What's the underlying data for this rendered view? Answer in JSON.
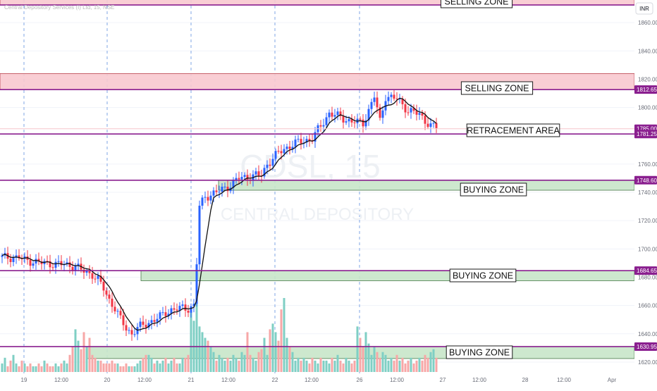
{
  "header": {
    "symbol_line": "Central Depository Services (I) Ltd, 15, NSE"
  },
  "currency_button": {
    "label": "INR"
  },
  "watermark": {
    "symbol": "CDSL, 15",
    "name": "CENTRAL DEPOSITORY"
  },
  "colors": {
    "up": "#2962ff",
    "down": "#f23645",
    "vol_up": "#7fcfc4",
    "vol_down": "#f7a7a7",
    "level_line": "#8a1f8f",
    "sell_zone_fill": "#f8c9cf",
    "buy_zone_fill": "#c8e6c9",
    "badge": "#8a1f8f",
    "ma": "#111111"
  },
  "chart_data": {
    "type": "candlestick",
    "interval": "15m",
    "ylim": [
      1612,
      1876
    ],
    "y_ticks": [
      1620,
      1640,
      1660,
      1680,
      1700,
      1720,
      1740,
      1760,
      1780,
      1800,
      1820,
      1840,
      1860
    ],
    "x_ticks": [
      "19",
      "12:00",
      "20",
      "12:00",
      "21",
      "12:00",
      "22",
      "12:00",
      "26",
      "12:00",
      "27",
      "12:00",
      "28",
      "12:00",
      "Apr"
    ],
    "session_labels": [
      "19",
      "20",
      "21",
      "22",
      "26"
    ],
    "price_levels": [
      {
        "value": 1812.65,
        "label": "1812.65"
      },
      {
        "value": 1785.0,
        "label": "1785.00"
      },
      {
        "value": 1781.25,
        "label": "1781.25"
      },
      {
        "value": 1748.6,
        "label": "1748.60"
      },
      {
        "value": 1684.65,
        "label": "1684.65"
      },
      {
        "value": 1630.95,
        "label": "1630.95"
      }
    ],
    "zones": [
      {
        "label": "SELLING ZONE",
        "type": "sell",
        "y_low": 1872.5,
        "y_high": 1880
      },
      {
        "label": "SELLING ZONE",
        "type": "sell",
        "y_low": 1812.65,
        "y_high": 1824
      },
      {
        "label": "BUYING ZONE",
        "type": "buy",
        "y_low": 1741.5,
        "y_high": 1748.6
      },
      {
        "label": "BUYING ZONE",
        "type": "buy",
        "y_low": 1677.5,
        "y_high": 1684.65
      },
      {
        "label": "BUYING ZONE",
        "type": "buy",
        "y_low": 1622.5,
        "y_high": 1630.95
      }
    ],
    "annotations": [
      {
        "label": "RETRACEMENT AREA",
        "y": 1787
      }
    ],
    "path_points": [
      [
        0,
        1694
      ],
      [
        6,
        1694
      ],
      [
        8,
        1692
      ],
      [
        12,
        1691
      ],
      [
        14,
        1690
      ],
      [
        22,
        1689
      ],
      [
        26,
        1688
      ],
      [
        28,
        1685
      ],
      [
        32,
        1682
      ],
      [
        34,
        1678
      ],
      [
        36,
        1672
      ],
      [
        38,
        1664
      ],
      [
        40,
        1658
      ],
      [
        42,
        1650
      ],
      [
        44,
        1644
      ],
      [
        46,
        1640
      ],
      [
        48,
        1644
      ],
      [
        52,
        1648
      ],
      [
        56,
        1652
      ],
      [
        58,
        1655
      ],
      [
        60,
        1657
      ],
      [
        64,
        1658
      ],
      [
        66,
        1658
      ],
      [
        68,
        1660
      ],
      [
        69,
        1690
      ],
      [
        70,
        1730
      ],
      [
        72,
        1737
      ],
      [
        76,
        1740
      ],
      [
        80,
        1744
      ],
      [
        84,
        1750
      ],
      [
        90,
        1752
      ],
      [
        92,
        1752
      ],
      [
        94,
        1760
      ],
      [
        98,
        1768
      ],
      [
        102,
        1773
      ],
      [
        106,
        1776
      ],
      [
        110,
        1778
      ],
      [
        112,
        1784
      ],
      [
        116,
        1796
      ],
      [
        120,
        1793
      ],
      [
        124,
        1790
      ],
      [
        128,
        1789
      ],
      [
        130,
        1798
      ],
      [
        132,
        1808
      ],
      [
        134,
        1790
      ],
      [
        136,
        1808
      ],
      [
        140,
        1806
      ],
      [
        144,
        1798
      ],
      [
        148,
        1795
      ],
      [
        152,
        1787
      ],
      [
        154,
        1786
      ]
    ],
    "volumes": [
      3,
      5,
      2,
      4,
      6,
      3,
      2,
      4,
      3,
      2,
      3,
      2,
      2,
      3,
      2,
      4,
      3,
      2,
      2,
      3,
      2,
      3,
      4,
      3,
      6,
      9,
      15,
      11,
      8,
      14,
      9,
      12,
      6,
      5,
      4,
      4,
      3,
      3,
      3,
      4,
      3,
      3,
      2,
      2,
      3,
      2,
      2,
      2,
      3,
      4,
      5,
      6,
      6,
      5,
      3,
      4,
      3,
      4,
      5,
      3,
      4,
      5,
      3,
      3,
      5,
      5,
      6,
      22,
      18,
      26,
      16,
      14,
      12,
      11,
      9,
      7,
      4,
      6,
      5,
      4,
      5,
      4,
      6,
      5,
      4,
      7,
      6,
      14,
      6,
      5,
      4,
      7,
      8,
      12,
      6,
      15,
      17,
      14,
      11,
      22,
      26,
      12,
      9,
      7,
      4,
      5,
      4,
      5,
      4,
      3,
      5,
      4,
      3,
      5,
      4,
      4,
      3,
      5,
      4,
      6,
      4,
      3,
      5,
      4,
      3,
      4,
      16,
      12,
      9,
      14,
      10,
      6,
      9,
      7,
      5,
      7,
      6,
      4,
      5,
      4,
      6,
      4,
      5,
      3,
      4,
      5,
      3,
      4,
      5,
      4,
      6,
      5,
      7,
      8,
      5
    ]
  }
}
